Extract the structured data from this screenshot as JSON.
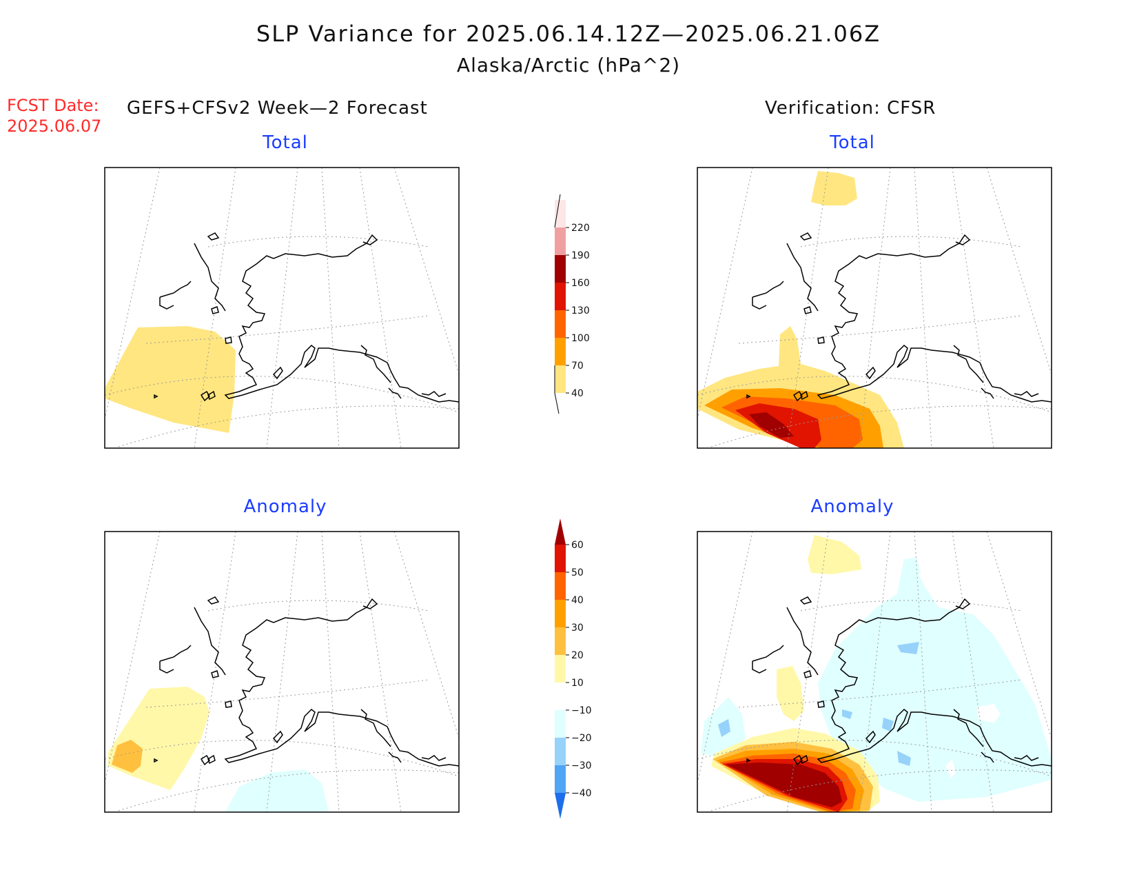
{
  "title": "SLP Variance for 2025.06.14.12Z—2025.06.21.06Z",
  "subtitle": "Alaska/Arctic (hPa^2)",
  "fcst_label": "FCST Date:",
  "fcst_date": "2025.06.07",
  "left_header": "GEFS+CFSv2 Week—2 Forecast",
  "right_header": "Verification: CFSR",
  "panels": {
    "forecast_total": "Total",
    "verification_total": "Total",
    "forecast_anomaly": "Anomaly",
    "verification_anomaly": "Anomaly"
  },
  "colorbar_total": {
    "levels": [
      "40",
      "70",
      "100",
      "130",
      "160",
      "190",
      "220"
    ],
    "colors": [
      "#ffe680",
      "#ffa000",
      "#ff6400",
      "#e01400",
      "#a00000",
      "#f0a0a0",
      "#fde6e6"
    ]
  },
  "colorbar_anomaly": {
    "levels": [
      "60",
      "50",
      "40",
      "30",
      "20",
      "10",
      "−10",
      "−20",
      "−30",
      "−40"
    ],
    "colors": [
      "#a00000",
      "#e01400",
      "#ff6400",
      "#ffa000",
      "#ffc040",
      "#fff8a8",
      "#ffffff",
      "#e0ffff",
      "#96d2fa",
      "#50a5f5",
      "#1e6eeb"
    ]
  },
  "colors": {
    "land_outline": "#000000",
    "grid": "#999999",
    "title_red": "#ff2a2a",
    "panel_title_blue": "#1a3cff"
  }
}
